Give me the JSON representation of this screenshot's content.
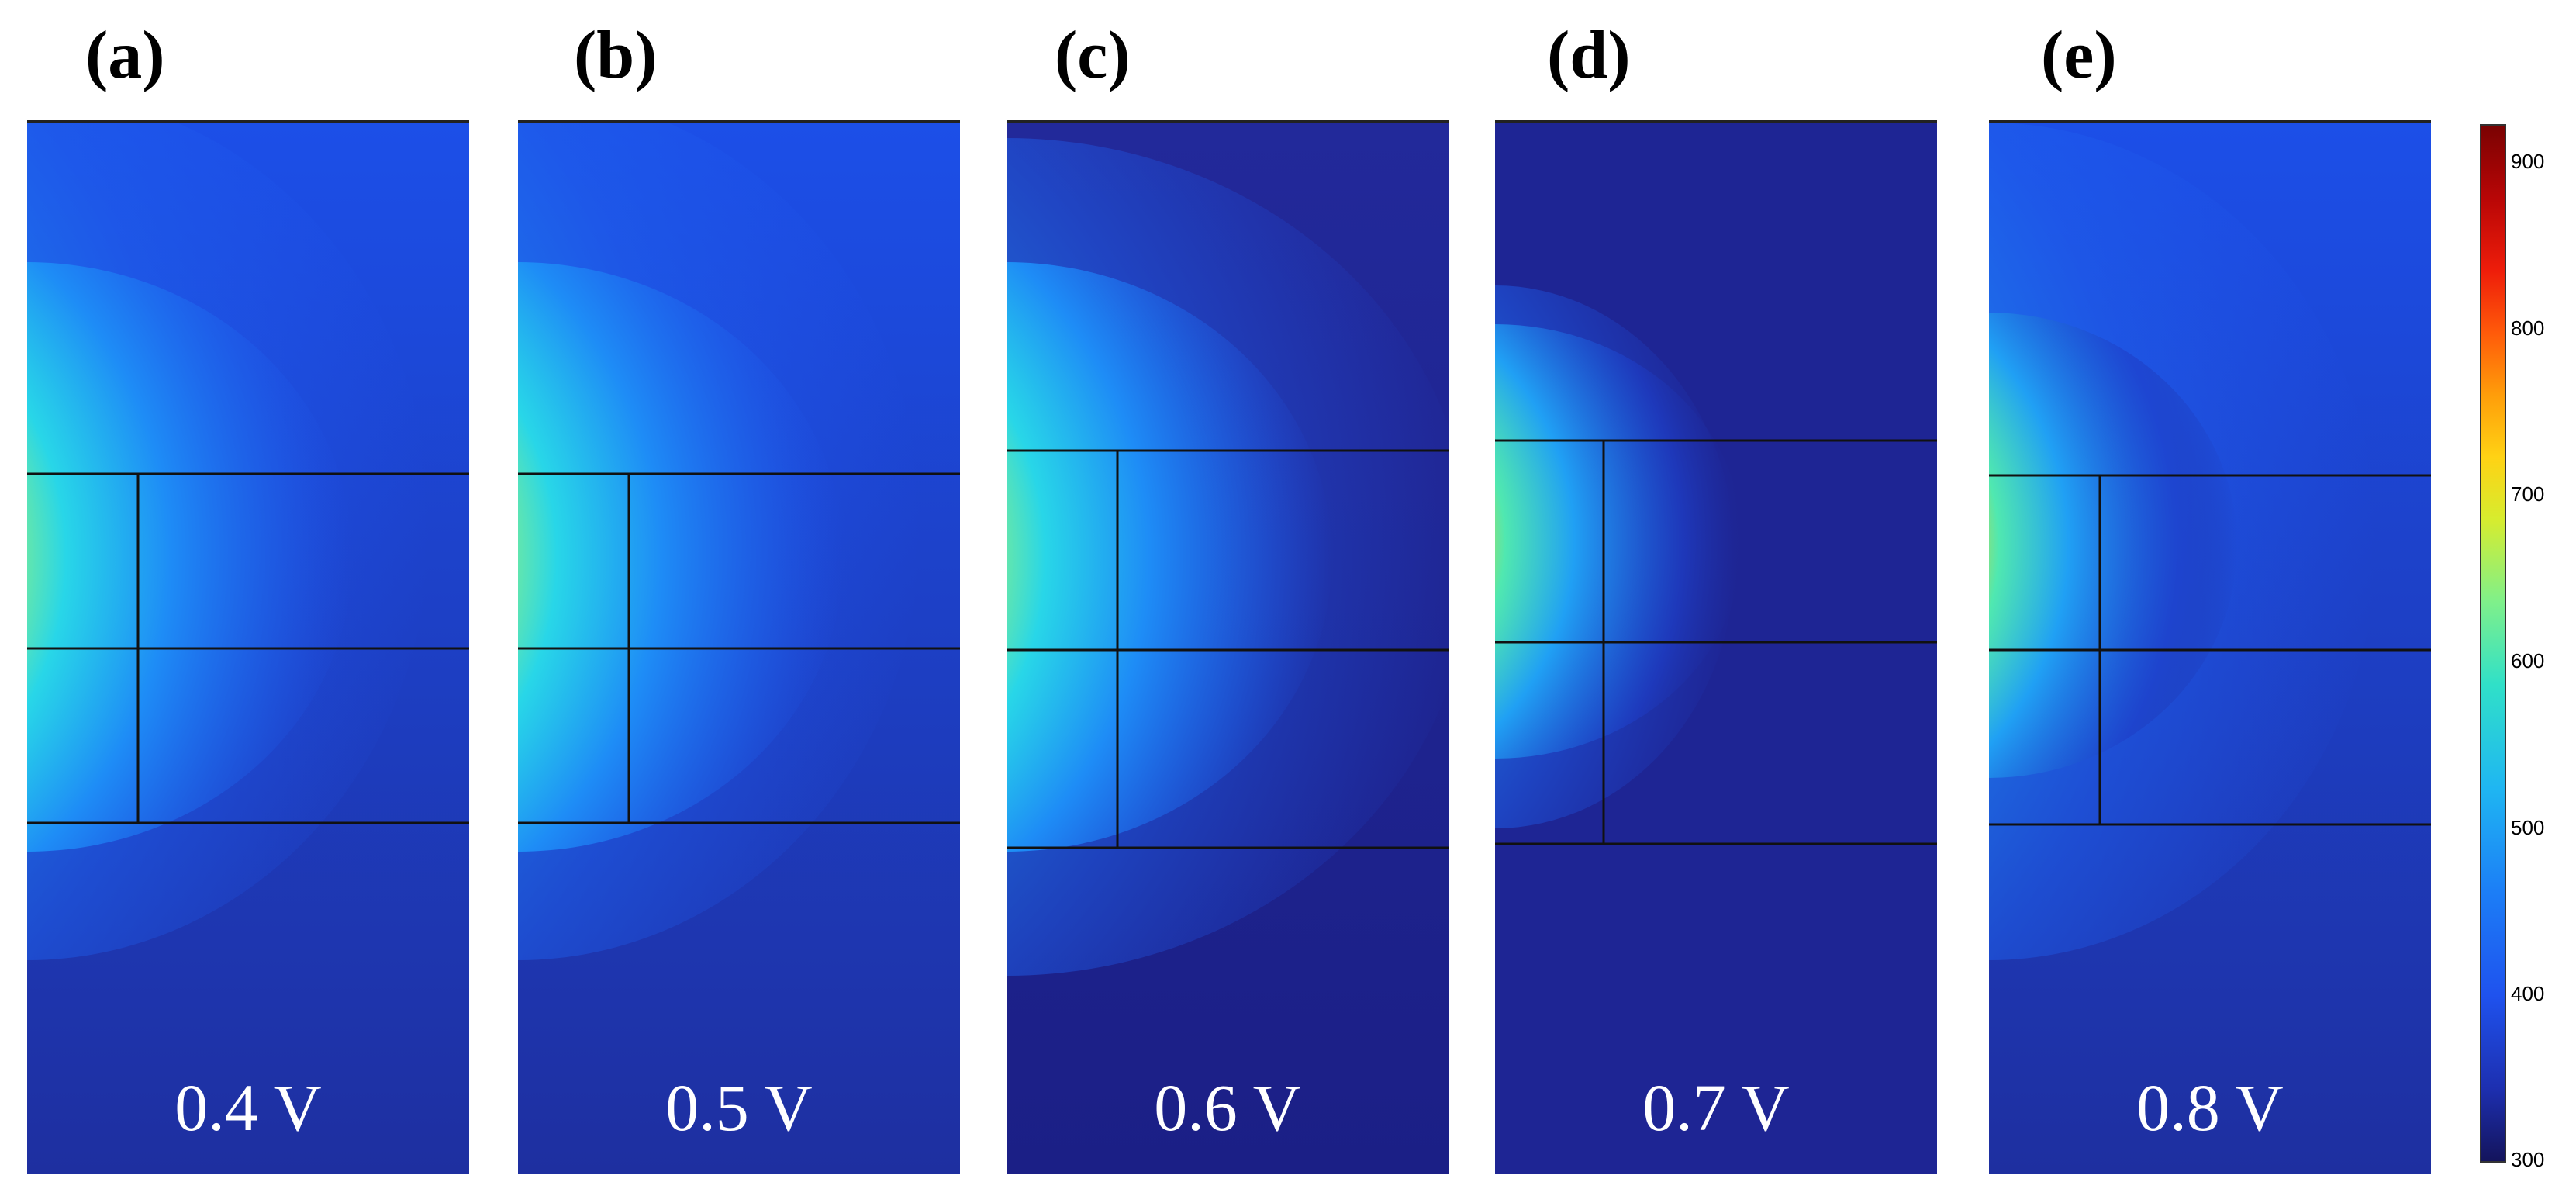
{
  "panels": [
    {
      "label": "(a)",
      "voltage": "0.4 V"
    },
    {
      "label": "(b)",
      "voltage": "0.5 V"
    },
    {
      "label": "(c)",
      "voltage": "0.6 V"
    },
    {
      "label": "(d)",
      "voltage": "0.7 V"
    },
    {
      "label": "(e)",
      "voltage": "0.8 V"
    }
  ],
  "colorbar": {
    "ticks": [
      "900",
      "800",
      "700",
      "600",
      "500",
      "400",
      "300"
    ],
    "colors": {
      "low": "#14145c",
      "mid_low": "#1f52ee",
      "mid": "#30e0c8",
      "mid_high": "#ffd214",
      "high": "#7a0202"
    }
  }
}
